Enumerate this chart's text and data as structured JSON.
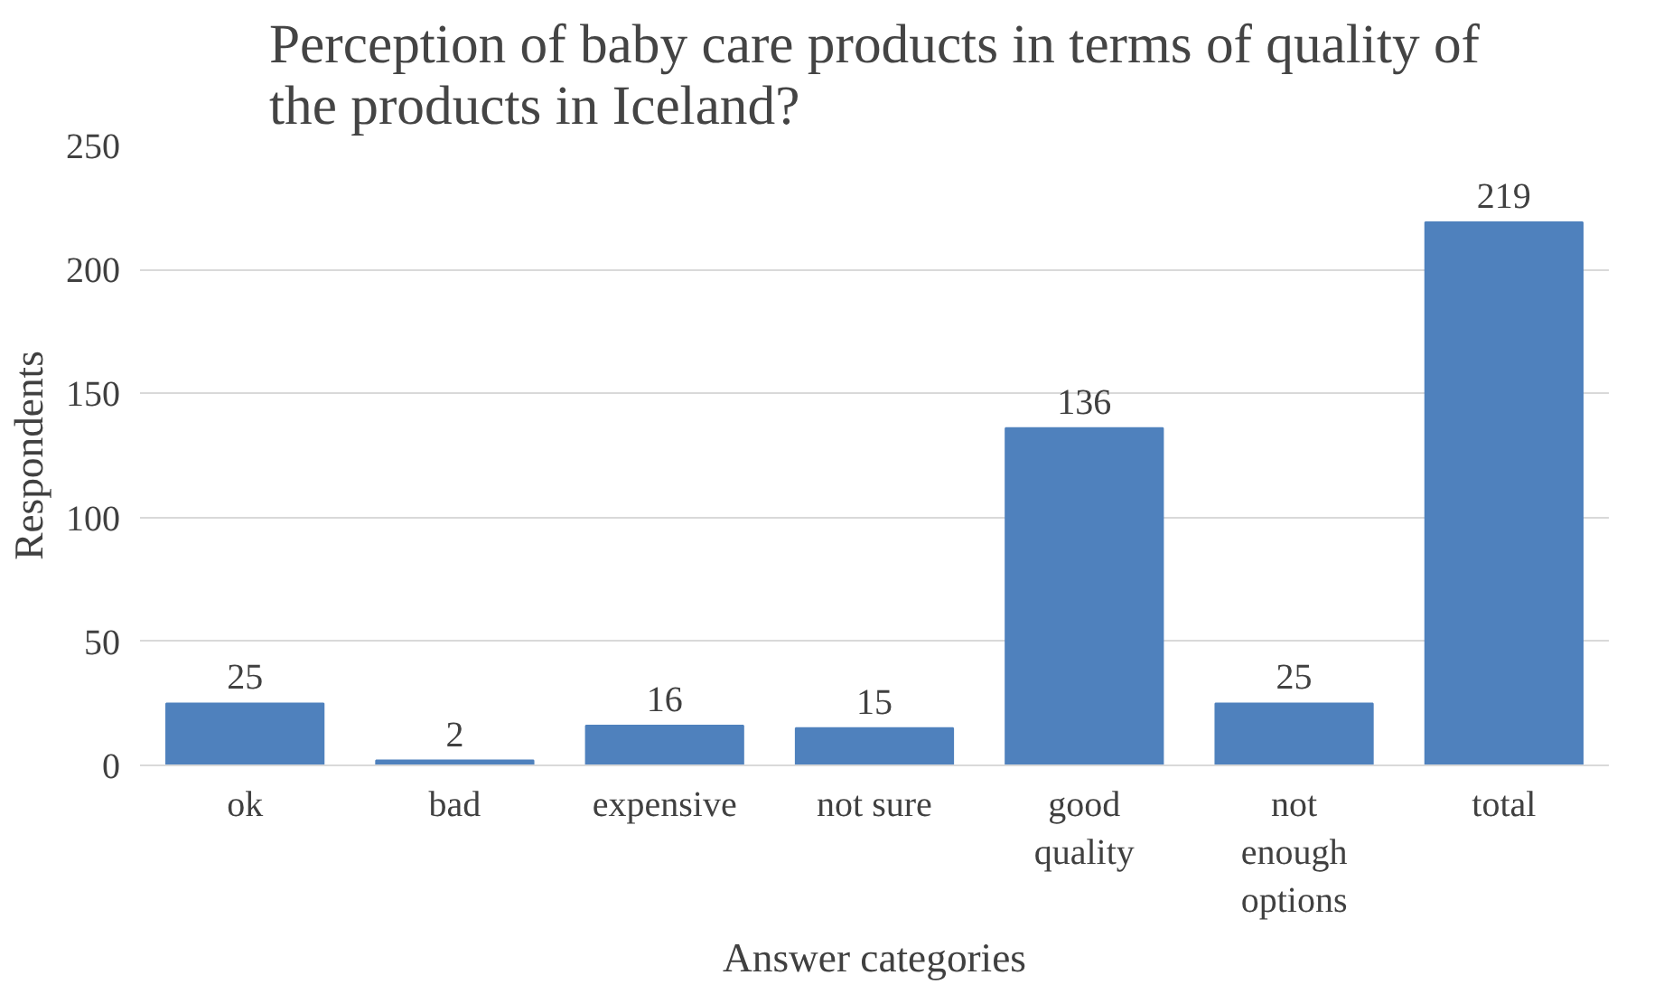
{
  "chart_data": {
    "type": "bar",
    "title": "Perception of baby care products in terms of quality of the products in Iceland?",
    "xlabel": "Answer categories",
    "ylabel": "Respondents",
    "categories": [
      "ok",
      "bad",
      "expensive",
      "not sure",
      "good quality",
      "not enough options",
      "total"
    ],
    "values": [
      25,
      2,
      16,
      15,
      136,
      25,
      219
    ],
    "color": "#4f81bd",
    "ylim": [
      0,
      250
    ],
    "yticks": [
      0,
      50,
      100,
      150,
      200,
      250
    ],
    "grid": "y",
    "data_labels": true
  }
}
